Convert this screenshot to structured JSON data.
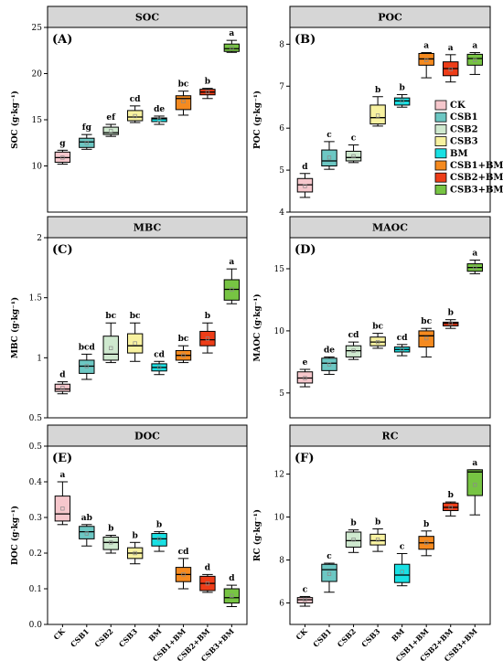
{
  "legend": {
    "entries": [
      "CK",
      "CSB1",
      "CSB2",
      "CSB3",
      "BM",
      "CSB1+BM",
      "CSB2+BM",
      "CSB3+BM"
    ],
    "colors": [
      "#f6c7cc",
      "#6cc7c3",
      "#cfe9cf",
      "#f8f2a0",
      "#19e0e3",
      "#f58a1f",
      "#ee3d18",
      "#77c443"
    ]
  },
  "chart_data": [
    {
      "type": "box",
      "panel": "(A)",
      "title": "SOC",
      "ylabel": "SOC (g·kg⁻¹)",
      "ylim": [
        5,
        25
      ],
      "yticks": [
        10,
        15,
        20,
        25
      ],
      "categories": [
        "CK",
        "CSB1",
        "CSB2",
        "CSB3",
        "BM",
        "CSB1+BM",
        "CSB2+BM",
        "CSB3+BM"
      ],
      "boxes": [
        {
          "min": 10.2,
          "q1": 10.4,
          "median": 10.9,
          "q3": 11.5,
          "max": 11.7,
          "mean": 10.9,
          "letter": "g"
        },
        {
          "min": 11.8,
          "q1": 12.0,
          "median": 12.6,
          "q3": 13.0,
          "max": 13.4,
          "mean": 12.5,
          "letter": "fg"
        },
        {
          "min": 13.2,
          "q1": 13.4,
          "median": 13.6,
          "q3": 14.2,
          "max": 14.5,
          "mean": 13.8,
          "letter": "ef"
        },
        {
          "min": 14.7,
          "q1": 14.9,
          "median": 15.3,
          "q3": 16.0,
          "max": 16.5,
          "mean": 15.4,
          "letter": "cd"
        },
        {
          "min": 14.5,
          "q1": 14.8,
          "median": 15.1,
          "q3": 15.2,
          "max": 15.4,
          "mean": 15.0,
          "letter": "de"
        },
        {
          "min": 15.5,
          "q1": 16.1,
          "median": 17.3,
          "q3": 17.6,
          "max": 18.1,
          "mean": 17.0,
          "letter": "bc"
        },
        {
          "min": 17.3,
          "q1": 17.7,
          "median": 18.0,
          "q3": 18.3,
          "max": 18.4,
          "mean": 18.0,
          "letter": "b"
        },
        {
          "min": 22.3,
          "q1": 22.4,
          "median": 22.7,
          "q3": 23.2,
          "max": 23.6,
          "mean": 22.8,
          "letter": "a"
        }
      ]
    },
    {
      "type": "box",
      "panel": "(B)",
      "title": "POC",
      "ylabel": "POC (g·kg⁻¹)",
      "ylim": [
        4,
        8.4
      ],
      "yticks": [
        4,
        5,
        6,
        7,
        8
      ],
      "categories": [
        "CK",
        "CSB1",
        "CSB2",
        "CSB3",
        "BM",
        "CSB1+BM",
        "CSB2+BM",
        "CSB3+BM"
      ],
      "boxes": [
        {
          "min": 4.35,
          "q1": 4.48,
          "median": 4.65,
          "q3": 4.8,
          "max": 4.92,
          "mean": 4.62,
          "letter": "d"
        },
        {
          "min": 5.02,
          "q1": 5.1,
          "median": 5.22,
          "q3": 5.48,
          "max": 5.68,
          "mean": 5.3,
          "letter": "c"
        },
        {
          "min": 5.18,
          "q1": 5.22,
          "median": 5.3,
          "q3": 5.45,
          "max": 5.6,
          "mean": 5.33,
          "letter": "c"
        },
        {
          "min": 6.05,
          "q1": 6.1,
          "median": 6.25,
          "q3": 6.55,
          "max": 6.75,
          "mean": 6.3,
          "letter": "b"
        },
        {
          "min": 6.5,
          "q1": 6.55,
          "median": 6.65,
          "q3": 6.72,
          "max": 6.8,
          "mean": 6.65,
          "letter": "b"
        },
        {
          "min": 7.2,
          "q1": 7.5,
          "median": 7.65,
          "q3": 7.78,
          "max": 7.8,
          "mean": 7.62,
          "letter": "a"
        },
        {
          "min": 7.1,
          "q1": 7.25,
          "median": 7.42,
          "q3": 7.58,
          "max": 7.75,
          "mean": 7.4,
          "letter": "a"
        },
        {
          "min": 7.28,
          "q1": 7.5,
          "median": 7.66,
          "q3": 7.76,
          "max": 7.8,
          "mean": 7.62,
          "letter": "a"
        }
      ]
    },
    {
      "type": "box",
      "panel": "(C)",
      "title": "MBC",
      "ylabel": "MBC (g·kg⁻¹)",
      "ylim": [
        0.5,
        2.0
      ],
      "yticks": [
        0.5,
        1.0,
        1.5,
        2.0
      ],
      "categories": [
        "CK",
        "CSB1",
        "CSB2",
        "CSB3",
        "BM",
        "CSB1+BM",
        "CSB2+BM",
        "CSB3+BM"
      ],
      "boxes": [
        {
          "min": 0.7,
          "q1": 0.72,
          "median": 0.74,
          "q3": 0.78,
          "max": 0.8,
          "mean": 0.75,
          "letter": "d"
        },
        {
          "min": 0.82,
          "q1": 0.87,
          "median": 0.93,
          "q3": 0.98,
          "max": 1.03,
          "mean": 0.93,
          "letter": "bcd"
        },
        {
          "min": 0.96,
          "q1": 0.98,
          "median": 1.03,
          "q3": 1.18,
          "max": 1.29,
          "mean": 1.08,
          "letter": "bc"
        },
        {
          "min": 0.97,
          "q1": 1.04,
          "median": 1.1,
          "q3": 1.2,
          "max": 1.29,
          "mean": 1.12,
          "letter": "bc"
        },
        {
          "min": 0.86,
          "q1": 0.89,
          "median": 0.92,
          "q3": 0.95,
          "max": 0.97,
          "mean": 0.92,
          "letter": "cd"
        },
        {
          "min": 0.96,
          "q1": 0.98,
          "median": 1.02,
          "q3": 1.06,
          "max": 1.1,
          "mean": 1.02,
          "letter": "bc"
        },
        {
          "min": 1.04,
          "q1": 1.1,
          "median": 1.15,
          "q3": 1.22,
          "max": 1.29,
          "mean": 1.16,
          "letter": "b"
        },
        {
          "min": 1.45,
          "q1": 1.48,
          "median": 1.57,
          "q3": 1.65,
          "max": 1.74,
          "mean": 1.57,
          "letter": "a"
        }
      ]
    },
    {
      "type": "box",
      "panel": "(D)",
      "title": "MAOC",
      "ylabel": "MAOC (g·kg⁻¹)",
      "ylim": [
        3,
        17.5
      ],
      "yticks": [
        5,
        10,
        15
      ],
      "categories": [
        "CK",
        "CSB1",
        "CSB2",
        "CSB3",
        "BM",
        "CSB1+BM",
        "CSB2+BM",
        "CSB3+BM"
      ],
      "boxes": [
        {
          "min": 5.5,
          "q1": 5.8,
          "median": 6.2,
          "q3": 6.7,
          "max": 6.9,
          "mean": 6.2,
          "letter": "e"
        },
        {
          "min": 6.5,
          "q1": 6.8,
          "median": 7.4,
          "q3": 7.8,
          "max": 7.9,
          "mean": 7.3,
          "letter": "de"
        },
        {
          "min": 7.7,
          "q1": 7.9,
          "median": 8.4,
          "q3": 8.8,
          "max": 9.1,
          "mean": 8.4,
          "letter": "cd"
        },
        {
          "min": 8.6,
          "q1": 8.8,
          "median": 9.1,
          "q3": 9.5,
          "max": 9.8,
          "mean": 9.1,
          "letter": "bc"
        },
        {
          "min": 8.0,
          "q1": 8.3,
          "median": 8.5,
          "q3": 8.7,
          "max": 8.9,
          "mean": 8.5,
          "letter": "cd"
        },
        {
          "min": 7.9,
          "q1": 8.7,
          "median": 9.6,
          "q3": 10.0,
          "max": 10.2,
          "mean": 9.4,
          "letter": "bc"
        },
        {
          "min": 10.2,
          "q1": 10.4,
          "median": 10.6,
          "q3": 10.7,
          "max": 10.9,
          "mean": 10.6,
          "letter": "b"
        },
        {
          "min": 14.6,
          "q1": 14.8,
          "median": 15.1,
          "q3": 15.4,
          "max": 15.7,
          "mean": 15.1,
          "letter": "a"
        }
      ]
    },
    {
      "type": "box",
      "panel": "(E)",
      "title": "DOC",
      "ylabel": "DOC (g·kg⁻¹)",
      "ylim": [
        0.0,
        0.5
      ],
      "yticks": [
        0.0,
        0.1,
        0.2,
        0.3,
        0.4,
        0.5
      ],
      "categories": [
        "CK",
        "CSB1",
        "CSB2",
        "CSB3",
        "BM",
        "CSB1+BM",
        "CSB2+BM",
        "CSB3+BM"
      ],
      "boxes": [
        {
          "min": 0.28,
          "q1": 0.29,
          "median": 0.31,
          "q3": 0.36,
          "max": 0.4,
          "mean": 0.325,
          "letter": "a"
        },
        {
          "min": 0.22,
          "q1": 0.24,
          "median": 0.26,
          "q3": 0.275,
          "max": 0.28,
          "mean": 0.255,
          "letter": "ab"
        },
        {
          "min": 0.2,
          "q1": 0.21,
          "median": 0.23,
          "q3": 0.245,
          "max": 0.25,
          "mean": 0.23,
          "letter": "b"
        },
        {
          "min": 0.17,
          "q1": 0.185,
          "median": 0.2,
          "q3": 0.215,
          "max": 0.23,
          "mean": 0.2,
          "letter": "b"
        },
        {
          "min": 0.205,
          "q1": 0.22,
          "median": 0.24,
          "q3": 0.255,
          "max": 0.26,
          "mean": 0.24,
          "letter": "b"
        },
        {
          "min": 0.1,
          "q1": 0.12,
          "median": 0.14,
          "q3": 0.16,
          "max": 0.185,
          "mean": 0.14,
          "letter": "cd"
        },
        {
          "min": 0.09,
          "q1": 0.095,
          "median": 0.115,
          "q3": 0.135,
          "max": 0.14,
          "mean": 0.115,
          "letter": "d"
        },
        {
          "min": 0.05,
          "q1": 0.06,
          "median": 0.075,
          "q3": 0.1,
          "max": 0.11,
          "mean": 0.08,
          "letter": "d"
        }
      ]
    },
    {
      "type": "box",
      "panel": "(F)",
      "title": "RC",
      "ylabel": "RC (g·kg⁻¹)",
      "ylim": [
        5,
        13.3
      ],
      "yticks": [
        6,
        8,
        10,
        12
      ],
      "categories": [
        "CK",
        "CSB1",
        "CSB2",
        "CSB3",
        "BM",
        "CSB1+BM",
        "CSB2+BM",
        "CSB3+BM"
      ],
      "boxes": [
        {
          "min": 5.85,
          "q1": 6.0,
          "median": 6.15,
          "q3": 6.25,
          "max": 6.3,
          "mean": 6.15,
          "letter": "c"
        },
        {
          "min": 6.5,
          "q1": 7.0,
          "median": 7.55,
          "q3": 7.8,
          "max": 7.85,
          "mean": 7.35,
          "letter": "c"
        },
        {
          "min": 8.35,
          "q1": 8.6,
          "median": 8.9,
          "q3": 9.3,
          "max": 9.4,
          "mean": 8.95,
          "letter": "b"
        },
        {
          "min": 8.4,
          "q1": 8.7,
          "median": 8.9,
          "q3": 9.2,
          "max": 9.45,
          "mean": 8.95,
          "letter": "b"
        },
        {
          "min": 6.8,
          "q1": 6.95,
          "median": 7.3,
          "q3": 7.8,
          "max": 8.3,
          "mean": 7.45,
          "letter": "c"
        },
        {
          "min": 8.2,
          "q1": 8.5,
          "median": 8.8,
          "q3": 9.1,
          "max": 9.35,
          "mean": 8.8,
          "letter": "b"
        },
        {
          "min": 10.05,
          "q1": 10.3,
          "median": 10.45,
          "q3": 10.65,
          "max": 10.7,
          "mean": 10.45,
          "letter": "b"
        },
        {
          "min": 10.1,
          "q1": 11.0,
          "median": 12.1,
          "q3": 12.2,
          "max": 12.2,
          "mean": 11.5,
          "letter": "a"
        }
      ]
    }
  ]
}
